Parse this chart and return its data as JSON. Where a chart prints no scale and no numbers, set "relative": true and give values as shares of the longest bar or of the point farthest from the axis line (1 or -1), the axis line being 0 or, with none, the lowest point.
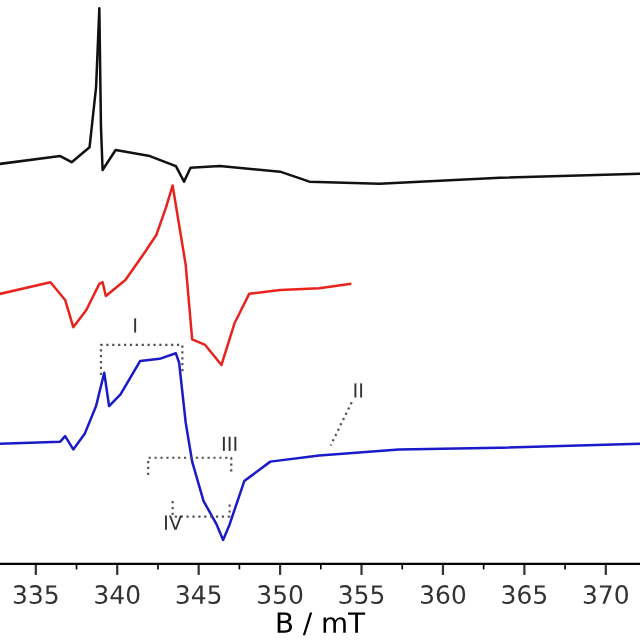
{
  "chart_data": {
    "type": "line",
    "relative": true,
    "xlabel": "B / mT",
    "xlim": [
      332.8,
      372.1
    ],
    "xticks": [
      335,
      340,
      345,
      350,
      355,
      360,
      365,
      370
    ],
    "grid": false,
    "marker": "none",
    "line_style": "solid",
    "series": [
      {
        "color": "#111111",
        "x": [
          332.8,
          336.5,
          337.2,
          338.3,
          338.7,
          338.9,
          339.0,
          339.1,
          339.9,
          342.0,
          343.6,
          344.1,
          344.5,
          346.3,
          350.0,
          351.8,
          356.1,
          363.5,
          372.1
        ],
        "values": [
          0.72,
          0.734,
          0.723,
          0.75,
          0.858,
          1.0,
          0.787,
          0.709,
          0.745,
          0.734,
          0.716,
          0.688,
          0.713,
          0.716,
          0.706,
          0.688,
          0.684,
          0.695,
          0.702
        ]
      },
      {
        "color": "#e8231e",
        "x": [
          332.8,
          335.9,
          336.8,
          337.3,
          338.1,
          338.9,
          339.1,
          339.3,
          340.5,
          341.6,
          342.4,
          343.0,
          343.4,
          343.8,
          344.2,
          344.6,
          345.4,
          346.4,
          347.2,
          348.1,
          350.0,
          352.4,
          354.3
        ],
        "values": [
          0.486,
          0.507,
          0.475,
          0.426,
          0.457,
          0.504,
          0.507,
          0.482,
          0.511,
          0.557,
          0.592,
          0.642,
          0.681,
          0.61,
          0.539,
          0.404,
          0.394,
          0.358,
          0.433,
          0.486,
          0.493,
          0.496,
          0.504
        ]
      },
      {
        "color": "#1a1ac8",
        "x": [
          332.8,
          336.5,
          336.8,
          337.3,
          338.0,
          338.7,
          339.2,
          339.5,
          340.2,
          341.4,
          342.6,
          343.6,
          343.8,
          344.2,
          344.6,
          345.3,
          346.1,
          346.5,
          346.9,
          347.8,
          349.4,
          352.4,
          357.3,
          363.5,
          372.1
        ],
        "values": [
          0.216,
          0.22,
          0.23,
          0.206,
          0.234,
          0.284,
          0.344,
          0.284,
          0.305,
          0.365,
          0.369,
          0.379,
          0.362,
          0.255,
          0.184,
          0.113,
          0.071,
          0.043,
          0.071,
          0.149,
          0.184,
          0.195,
          0.206,
          0.209,
          0.216
        ]
      }
    ],
    "annotations": [
      "I",
      "II",
      "III",
      "IV"
    ]
  }
}
